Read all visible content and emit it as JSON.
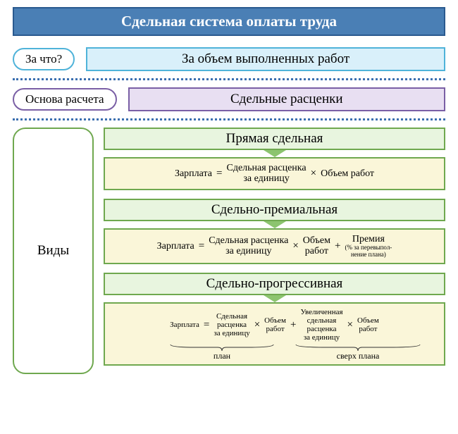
{
  "title": {
    "text": "Сдельная система оплаты труда",
    "bg": "#4a7fb5",
    "border": "#2a5a8f",
    "color": "#ffffff",
    "fontsize": 21
  },
  "row1": {
    "pill": {
      "text": "За что?",
      "border": "#4fb3d9",
      "bg": "#ffffff"
    },
    "box": {
      "text": "За объем выполненных работ",
      "border": "#4fb3d9",
      "bg": "#d9f0fa"
    }
  },
  "divider_color": "#3b6fb0",
  "row2": {
    "pill": {
      "text": "Основа расчета",
      "border": "#7a5fa5",
      "bg": "#ffffff"
    },
    "box": {
      "text": "Сдельные расценки",
      "border": "#7a5fa5",
      "bg": "#e8dff2"
    }
  },
  "types": {
    "label": {
      "text": "Виды",
      "border": "#6fa84f",
      "bg": "#ffffff"
    },
    "header_bg": "#e8f5df",
    "header_border": "#6fa84f",
    "formula_bg": "#faf6d9",
    "formula_border": "#6fa84f",
    "connector_color": "#8cc46f",
    "items": [
      {
        "name": "Прямая сдельная",
        "zar": "Зарплата",
        "terms": [
          {
            "top": "Сдельная расценка",
            "bot": "за единицу"
          },
          {
            "top": "Объем работ"
          }
        ]
      },
      {
        "name": "Сдельно-премиальная",
        "zar": "Зарплата",
        "terms": [
          {
            "top": "Сдельная расценка",
            "bot": "за единицу"
          },
          {
            "top": "Объем",
            "bot": "работ"
          }
        ],
        "plus": {
          "top": "Премия",
          "sub1": "(% за перевыпол-",
          "sub2": "нение плана)"
        }
      },
      {
        "name": "Сдельно-прогрессивная",
        "zar": "Зарплата",
        "group1": {
          "label": "план",
          "terms": [
            {
              "l1": "Сдельная",
              "l2": "расценка",
              "l3": "за единицу"
            },
            {
              "l1": "Объем",
              "l2": "работ"
            }
          ]
        },
        "group2": {
          "label": "сверх плана",
          "terms": [
            {
              "l1": "Увеличенная",
              "l2": "сдельная",
              "l3": "расценка",
              "l4": "за единицу"
            },
            {
              "l1": "Объем",
              "l2": "работ"
            }
          ]
        }
      }
    ]
  }
}
